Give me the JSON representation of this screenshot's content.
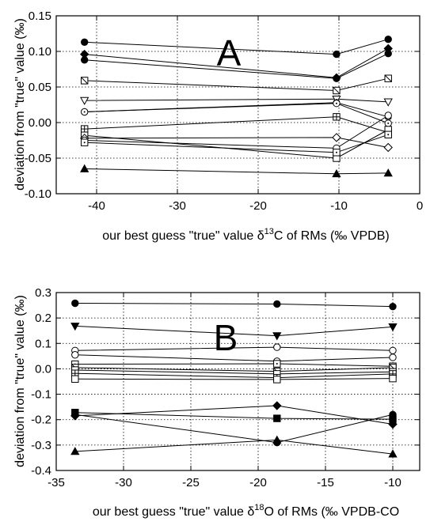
{
  "chart_data": [
    {
      "type": "line",
      "panel_label": "A",
      "xlabel_parts": [
        "our best guess \"true\" value δ",
        "13",
        "C of RMs (‰ VPDB)"
      ],
      "ylabel": "deviation from \"true\"  value (‰)",
      "xlim": [
        -45,
        0
      ],
      "ylim": [
        -0.1,
        0.15
      ],
      "xticks": [
        -40,
        -30,
        -20,
        -10,
        0
      ],
      "yticks": [
        -0.1,
        -0.05,
        0.0,
        0.05,
        0.1,
        0.15
      ],
      "xtick_labels": [
        "-40",
        "-30",
        "-20",
        "-10",
        "0"
      ],
      "ytick_labels": [
        "-0.10",
        "-0.05",
        "0.00",
        "0.05",
        "0.10",
        "0.15"
      ],
      "grid": true,
      "x": [
        -41.5,
        -10.3,
        -3.9
      ],
      "series": [
        {
          "marker": "circle-filled",
          "values": [
            0.113,
            0.096,
            0.117
          ]
        },
        {
          "marker": "diamond-filled",
          "values": [
            0.096,
            0.063,
            0.104
          ]
        },
        {
          "marker": "circle-filled",
          "values": [
            0.088,
            0.062,
            0.097
          ]
        },
        {
          "marker": "square-cross",
          "values": [
            0.059,
            0.045,
            0.062
          ]
        },
        {
          "marker": "triangle-down-open",
          "values": [
            0.031,
            0.033,
            0.029
          ]
        },
        {
          "marker": "hexagon-open",
          "values": [
            0.015,
            0.028,
            0.008
          ]
        },
        {
          "marker": "circle-dot",
          "values": [
            0.015,
            0.027,
            -0.001
          ]
        },
        {
          "marker": "square-plus",
          "values": [
            -0.009,
            0.008,
            -0.014
          ]
        },
        {
          "marker": "square-open",
          "values": [
            -0.018,
            -0.05,
            -0.01
          ]
        },
        {
          "marker": "diamond-open",
          "values": [
            -0.022,
            -0.021,
            -0.035
          ]
        },
        {
          "marker": "circle-open",
          "values": [
            -0.025,
            -0.036,
            0.01
          ]
        },
        {
          "marker": "square-dot",
          "values": [
            -0.028,
            -0.042,
            -0.017
          ]
        },
        {
          "marker": "triangle-filled",
          "values": [
            -0.065,
            -0.072,
            -0.071
          ]
        }
      ]
    },
    {
      "type": "line",
      "panel_label": "B",
      "xlabel_parts": [
        "our best guess \"true\" value δ",
        "18",
        "O of RMs  (‰ VPDB-CO"
      ],
      "ylabel": "deviation from \"true\"  value (‰)",
      "xlim": [
        -35,
        -8
      ],
      "ylim": [
        -0.4,
        0.3
      ],
      "xticks": [
        -35,
        -30,
        -25,
        -20,
        -15,
        -10
      ],
      "yticks": [
        -0.4,
        -0.3,
        -0.2,
        -0.1,
        0.0,
        0.1,
        0.2,
        0.3
      ],
      "xtick_labels": [
        "-35",
        "-30",
        "-25",
        "-20",
        "-15",
        "-10"
      ],
      "ytick_labels": [
        "-0.4",
        "-0.3",
        "-0.2",
        "-0.1",
        "0.0",
        "0.1",
        "0.2",
        "0.3"
      ],
      "grid": true,
      "x": [
        -33.6,
        -18.6,
        -10.0
      ],
      "series": [
        {
          "marker": "circle-filled",
          "values": [
            0.258,
            0.255,
            0.245
          ]
        },
        {
          "marker": "triangle-down-filled",
          "values": [
            0.168,
            0.13,
            0.165
          ]
        },
        {
          "marker": "circle-open",
          "values": [
            0.072,
            0.085,
            0.072
          ]
        },
        {
          "marker": "circle-open",
          "values": [
            0.055,
            0.03,
            0.045
          ]
        },
        {
          "marker": "square-dot",
          "values": [
            0.018,
            0.02,
            0.01
          ]
        },
        {
          "marker": "square-cross",
          "values": [
            0.005,
            -0.01,
            0.005
          ]
        },
        {
          "marker": "square-open",
          "values": [
            -0.005,
            -0.02,
            -0.012
          ]
        },
        {
          "marker": "square-plus",
          "values": [
            -0.018,
            -0.035,
            -0.02
          ]
        },
        {
          "marker": "square-open",
          "values": [
            -0.04,
            -0.042,
            -0.038
          ]
        },
        {
          "marker": "square-filled",
          "values": [
            -0.172,
            -0.195,
            -0.198
          ]
        },
        {
          "marker": "circle-filled",
          "values": [
            -0.18,
            -0.29,
            -0.18
          ]
        },
        {
          "marker": "diamond-filled",
          "values": [
            -0.185,
            -0.145,
            -0.218
          ]
        },
        {
          "marker": "triangle-filled",
          "values": [
            -0.325,
            -0.28,
            -0.335
          ]
        }
      ]
    }
  ]
}
